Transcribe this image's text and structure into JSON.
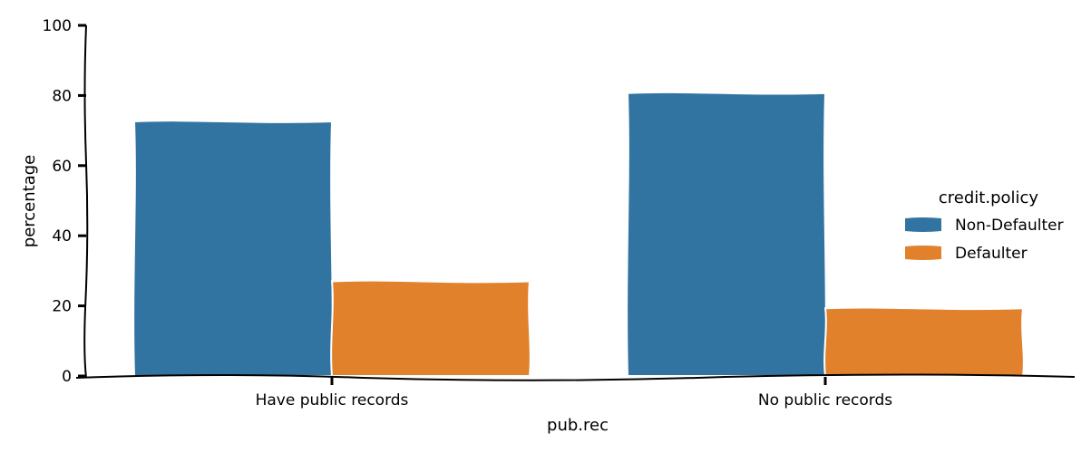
{
  "chart_data": {
    "type": "bar",
    "categories": [
      "Have public records",
      "No public records"
    ],
    "series": [
      {
        "name": "Non-Defaulter",
        "values": [
          72.6,
          80.7
        ],
        "color": "#3274a1"
      },
      {
        "name": "Defaulter",
        "values": [
          27.0,
          19.3
        ],
        "color": "#e1812c"
      }
    ],
    "xlabel": "pub.rec",
    "ylabel": "percentage",
    "ylim": [
      0,
      100
    ],
    "yticks": [
      "0",
      "20",
      "40",
      "60",
      "80",
      "100"
    ],
    "legend": {
      "title": "credit.policy",
      "placement": "right"
    },
    "grid": false
  }
}
